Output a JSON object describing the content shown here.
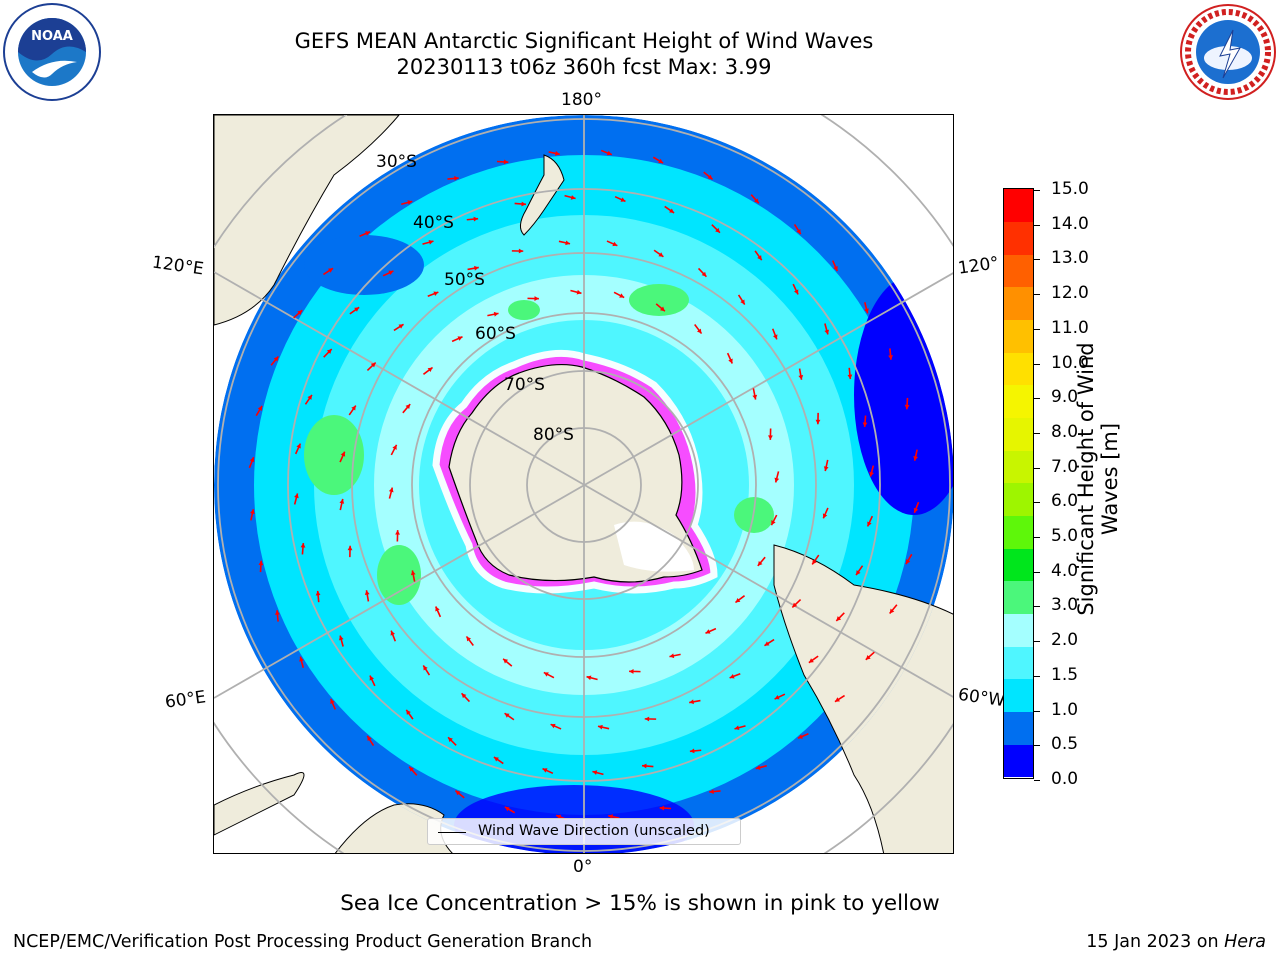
{
  "title": {
    "line1": "GEFS MEAN Antarctic Significant Height of Wind Waves",
    "line2": "20230113 t06z 360h fcst   Max: 3.99"
  },
  "logos": {
    "left": "NOAA logo",
    "right": "National Weather Service logo"
  },
  "map": {
    "longitude_labels": {
      "top": "180°",
      "left_upper": "120°E",
      "right_upper": "120°",
      "left_lower": "60°E",
      "right_lower": "60°W",
      "bottom": "0°"
    },
    "latitude_labels": [
      "30°S",
      "40°S",
      "50°S",
      "60°S",
      "70°S",
      "80°S"
    ],
    "legend": "Wind Wave Direction (unscaled)",
    "colors": {
      "land": "#efecdc",
      "ice": "#ff00ff",
      "arrows": "#ff0000",
      "grid": "#b0b0b0"
    }
  },
  "colorbar": {
    "label": "Significant Height of Wind Waves [m]",
    "ticks": [
      "15.0",
      "14.0",
      "13.0",
      "12.0",
      "11.0",
      "10.0",
      "9.0",
      "8.0",
      "7.0",
      "6.0",
      "5.0",
      "4.0",
      "3.0",
      "2.0",
      "1.5",
      "1.0",
      "0.5",
      "0.0"
    ],
    "colors": [
      "#0000ff",
      "#006ff0",
      "#00e5ff",
      "#4ff6ff",
      "#a4ffff",
      "#4bf77b",
      "#00e61c",
      "#5ef70a",
      "#9ef500",
      "#c8f500",
      "#e6f500",
      "#f5f500",
      "#ffe000",
      "#ffc000",
      "#ff9000",
      "#ff6000",
      "#ff3000",
      "#ff0000"
    ]
  },
  "note": "Sea Ice Concentration > 15% is shown in pink to yellow",
  "footer": {
    "left": "NCEP/EMC/Verification Post Processing Product Generation Branch",
    "right_prefix": "15 Jan 2023 on ",
    "right_host": "Hera"
  }
}
